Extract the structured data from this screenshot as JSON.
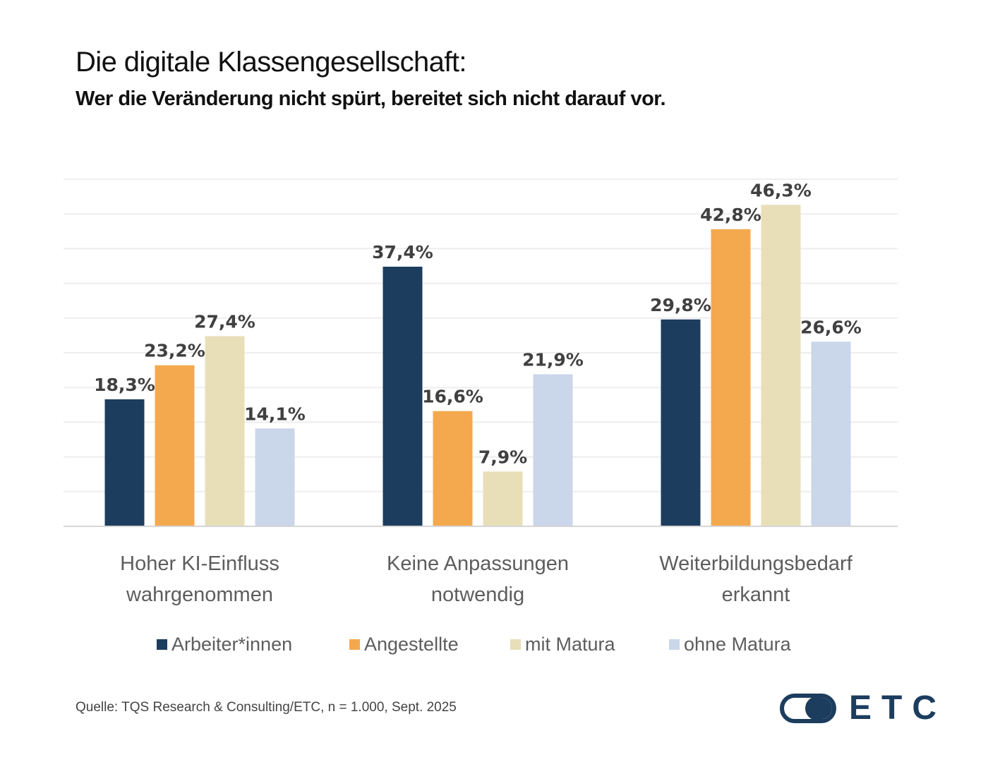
{
  "header": {
    "title": "Die digitale Klassengesellschaft:",
    "subtitle": "Wer die Veränderung nicht spürt, bereitet sich nicht darauf vor."
  },
  "chart_data": {
    "type": "bar",
    "title": "Die digitale Klassengesellschaft:",
    "subtitle": "Wer die Veränderung nicht spürt, bereitet sich nicht darauf vor.",
    "xlabel": "",
    "ylabel": "",
    "ylim": [
      0,
      50
    ],
    "grid": true,
    "grid_step": 5,
    "y_axis_labels_visible": false,
    "legend_position": "bottom",
    "categories": [
      [
        "Hoher KI-Einfluss",
        "wahrgenommen"
      ],
      [
        "Keine Anpassungen",
        "notwendig"
      ],
      [
        "Weiterbildungsbedarf",
        "erkannt"
      ]
    ],
    "series": [
      {
        "name": "Arbeiter*innen",
        "color": "#1c3d5e",
        "values": [
          18.3,
          37.4,
          29.8
        ],
        "labels": [
          "18,3%",
          "37,4%",
          "29,8%"
        ]
      },
      {
        "name": "Angestellte",
        "color": "#f4a94e",
        "values": [
          23.2,
          16.6,
          42.8
        ],
        "labels": [
          "23,2%",
          "16,6%",
          "42,8%"
        ]
      },
      {
        "name": "mit Matura",
        "color": "#e8dfb8",
        "values": [
          27.4,
          7.9,
          46.3
        ],
        "labels": [
          "27,4%",
          "7,9%",
          "46,3%"
        ]
      },
      {
        "name": "ohne Matura",
        "color": "#cad6ea",
        "values": [
          14.1,
          21.9,
          26.6
        ],
        "labels": [
          "14,1%",
          "21,9%",
          "26,6%"
        ]
      }
    ]
  },
  "legend": {
    "items": [
      {
        "label": "Arbeiter*innen",
        "color": "#1c3d5e"
      },
      {
        "label": "Angestellte",
        "color": "#f4a94e"
      },
      {
        "label": "mit Matura",
        "color": "#e8dfb8"
      },
      {
        "label": "ohne Matura",
        "color": "#cad6ea"
      }
    ]
  },
  "footer": {
    "source": "Quelle: TQS Research & Consulting/ETC, n = 1.000, Sept. 2025",
    "logo_text": "ETC",
    "logo_color": "#1c3d5e"
  }
}
